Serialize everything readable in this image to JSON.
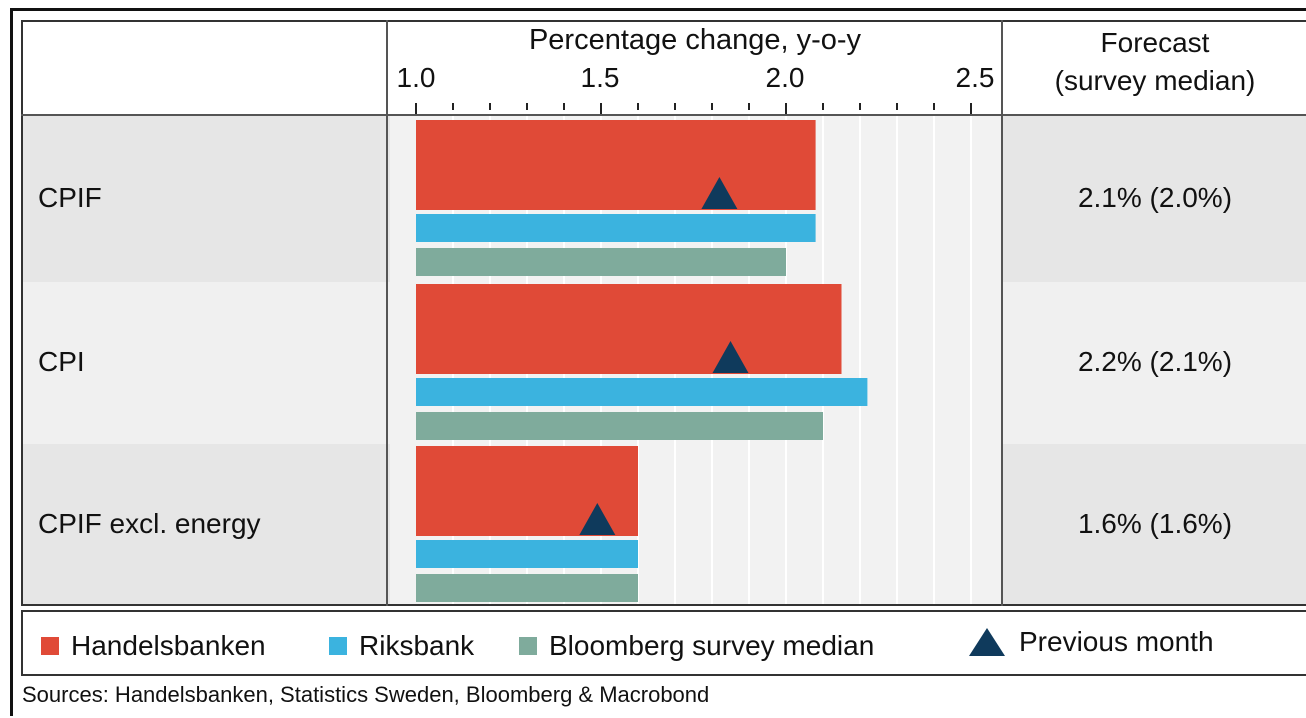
{
  "chart_data": {
    "type": "bar",
    "title": "Percentage change, y-o-y",
    "xlim": [
      1.0,
      2.55
    ],
    "tick_labels": [
      "1.0",
      "1.5",
      "2.0",
      "2.5"
    ],
    "tick_values": [
      1.0,
      1.5,
      2.0,
      2.5
    ],
    "categories": [
      "CPIF",
      "CPI",
      "CPIF excl. energy"
    ],
    "series": [
      {
        "name": "Handelsbanken",
        "color": "#e04a37",
        "values": [
          2.08,
          2.15,
          1.6
        ]
      },
      {
        "name": "Riksbank",
        "color": "#3bb3df",
        "values": [
          2.08,
          2.22,
          1.6
        ]
      },
      {
        "name": "Bloomberg survey median",
        "color": "#7fab9c",
        "values": [
          2.0,
          2.1,
          1.6
        ]
      }
    ],
    "markers": {
      "name": "Previous month",
      "color": "#0f3a5c",
      "values": [
        1.82,
        1.85,
        1.49
      ]
    },
    "forecast_header": [
      "Forecast",
      "(survey median)"
    ],
    "forecast_values": [
      "2.1% (2.0%)",
      "2.2% (2.1%)",
      "1.6% (1.6%)"
    ],
    "grid": true,
    "legend_position": "bottom"
  },
  "legend": {
    "handelsbanken": "Handelsbanken",
    "riksbank": "Riksbank",
    "bloomberg": "Bloomberg survey median",
    "previous": "Previous month"
  },
  "source": "Sources: Handelsbanken, Statistics Sweden, Bloomberg & Macrobond",
  "colors": {
    "handelsbanken": "#e04a37",
    "riksbank": "#3bb3df",
    "bloomberg": "#7fab9c",
    "previous": "#0f3a5c",
    "band_light": "#f0f0f0",
    "band_dark": "#e2e2e2"
  }
}
